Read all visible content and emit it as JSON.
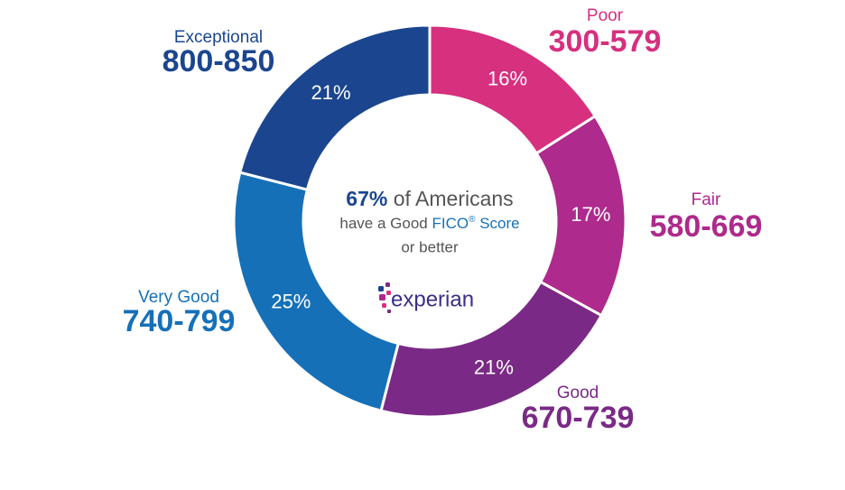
{
  "chart_data": {
    "type": "donut",
    "categories": [
      "Poor",
      "Fair",
      "Good",
      "Very Good",
      "Exceptional"
    ],
    "ranges": [
      "300-579",
      "580-669",
      "670-739",
      "740-799",
      "800-850"
    ],
    "values": [
      16,
      17,
      21,
      25,
      21
    ],
    "value_labels": [
      "16%",
      "17%",
      "21%",
      "25%",
      "21%"
    ],
    "colors": [
      "#d6307f",
      "#ae2a8c",
      "#7a2a86",
      "#1670b8",
      "#1b468f"
    ],
    "center_text": {
      "highlight": "67%",
      "line1": "of Americans",
      "line2_start": "have a Good",
      "brand": "FICO",
      "registered": "®",
      "line2_end": "Score",
      "line3": "or better"
    },
    "logo": "experian"
  }
}
